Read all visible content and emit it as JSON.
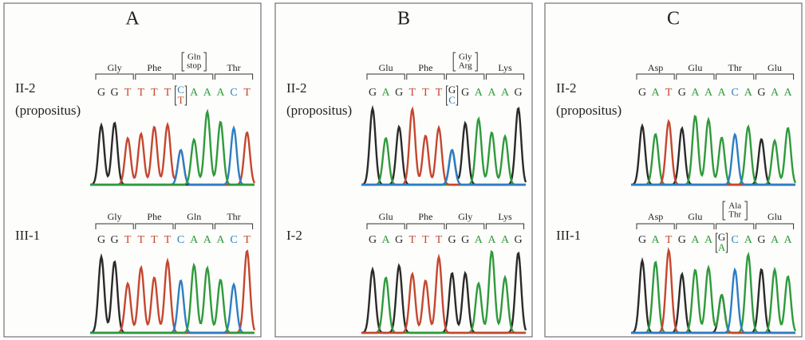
{
  "panels": [
    {
      "label": "A",
      "rows": [
        {
          "sample": [
            "II-2",
            "(propositus)"
          ],
          "codons": [
            [
              "Gly"
            ],
            [
              "Phe"
            ],
            [
              "Gln",
              "stop"
            ],
            [
              "Thr"
            ]
          ],
          "bases": [
            [
              "G"
            ],
            [
              "G"
            ],
            [
              "T"
            ],
            [
              "T"
            ],
            [
              "T"
            ],
            [
              "T"
            ],
            [
              "C",
              "T"
            ],
            [
              "A"
            ],
            [
              "A"
            ],
            [
              "A"
            ],
            [
              "C"
            ],
            [
              "T"
            ]
          ]
        },
        {
          "sample": [
            "III-1"
          ],
          "codons": [
            [
              "Gly"
            ],
            [
              "Phe"
            ],
            [
              "Gln"
            ],
            [
              "Thr"
            ]
          ],
          "bases": [
            [
              "G"
            ],
            [
              "G"
            ],
            [
              "T"
            ],
            [
              "T"
            ],
            [
              "T"
            ],
            [
              "T"
            ],
            [
              "C"
            ],
            [
              "A"
            ],
            [
              "A"
            ],
            [
              "A"
            ],
            [
              "C"
            ],
            [
              "T"
            ]
          ]
        }
      ]
    },
    {
      "label": "B",
      "rows": [
        {
          "sample": [
            "II-2",
            "(propositus)"
          ],
          "codons": [
            [
              "Glu"
            ],
            [
              "Phe"
            ],
            [
              "Gly",
              "Arg"
            ],
            [
              "Lys"
            ]
          ],
          "bases": [
            [
              "G"
            ],
            [
              "A"
            ],
            [
              "G"
            ],
            [
              "T"
            ],
            [
              "T"
            ],
            [
              "T"
            ],
            [
              "G",
              "C"
            ],
            [
              "G"
            ],
            [
              "A"
            ],
            [
              "A"
            ],
            [
              "A"
            ],
            [
              "G"
            ]
          ]
        },
        {
          "sample": [
            "I-2"
          ],
          "codons": [
            [
              "Glu"
            ],
            [
              "Phe"
            ],
            [
              "Gly"
            ],
            [
              "Lys"
            ]
          ],
          "bases": [
            [
              "G"
            ],
            [
              "A"
            ],
            [
              "G"
            ],
            [
              "T"
            ],
            [
              "T"
            ],
            [
              "T"
            ],
            [
              "G"
            ],
            [
              "G"
            ],
            [
              "A"
            ],
            [
              "A"
            ],
            [
              "A"
            ],
            [
              "G"
            ]
          ]
        }
      ]
    },
    {
      "label": "C",
      "rows": [
        {
          "sample": [
            "II-2",
            "(propositus)"
          ],
          "codons": [
            [
              "Asp"
            ],
            [
              "Glu"
            ],
            [
              "Thr"
            ],
            [
              "Glu"
            ]
          ],
          "bases": [
            [
              "G"
            ],
            [
              "A"
            ],
            [
              "T"
            ],
            [
              "G"
            ],
            [
              "A"
            ],
            [
              "A"
            ],
            [
              "A"
            ],
            [
              "C"
            ],
            [
              "A"
            ],
            [
              "G"
            ],
            [
              "A"
            ],
            [
              "A"
            ]
          ]
        },
        {
          "sample": [
            "III-1"
          ],
          "codons": [
            [
              "Asp"
            ],
            [
              "Glu"
            ],
            [
              "Ala",
              "Thr"
            ],
            [
              "Glu"
            ]
          ],
          "bases": [
            [
              "G"
            ],
            [
              "A"
            ],
            [
              "T"
            ],
            [
              "G"
            ],
            [
              "A"
            ],
            [
              "A"
            ],
            [
              "G",
              "A"
            ],
            [
              "C"
            ],
            [
              "A"
            ],
            [
              "G"
            ],
            [
              "A"
            ],
            [
              "A"
            ]
          ]
        }
      ]
    }
  ],
  "base_colors": {
    "G": "#2a2a2a",
    "A": "#2f9a3c",
    "T": "#c4472f",
    "C": "#2c7ec4"
  }
}
